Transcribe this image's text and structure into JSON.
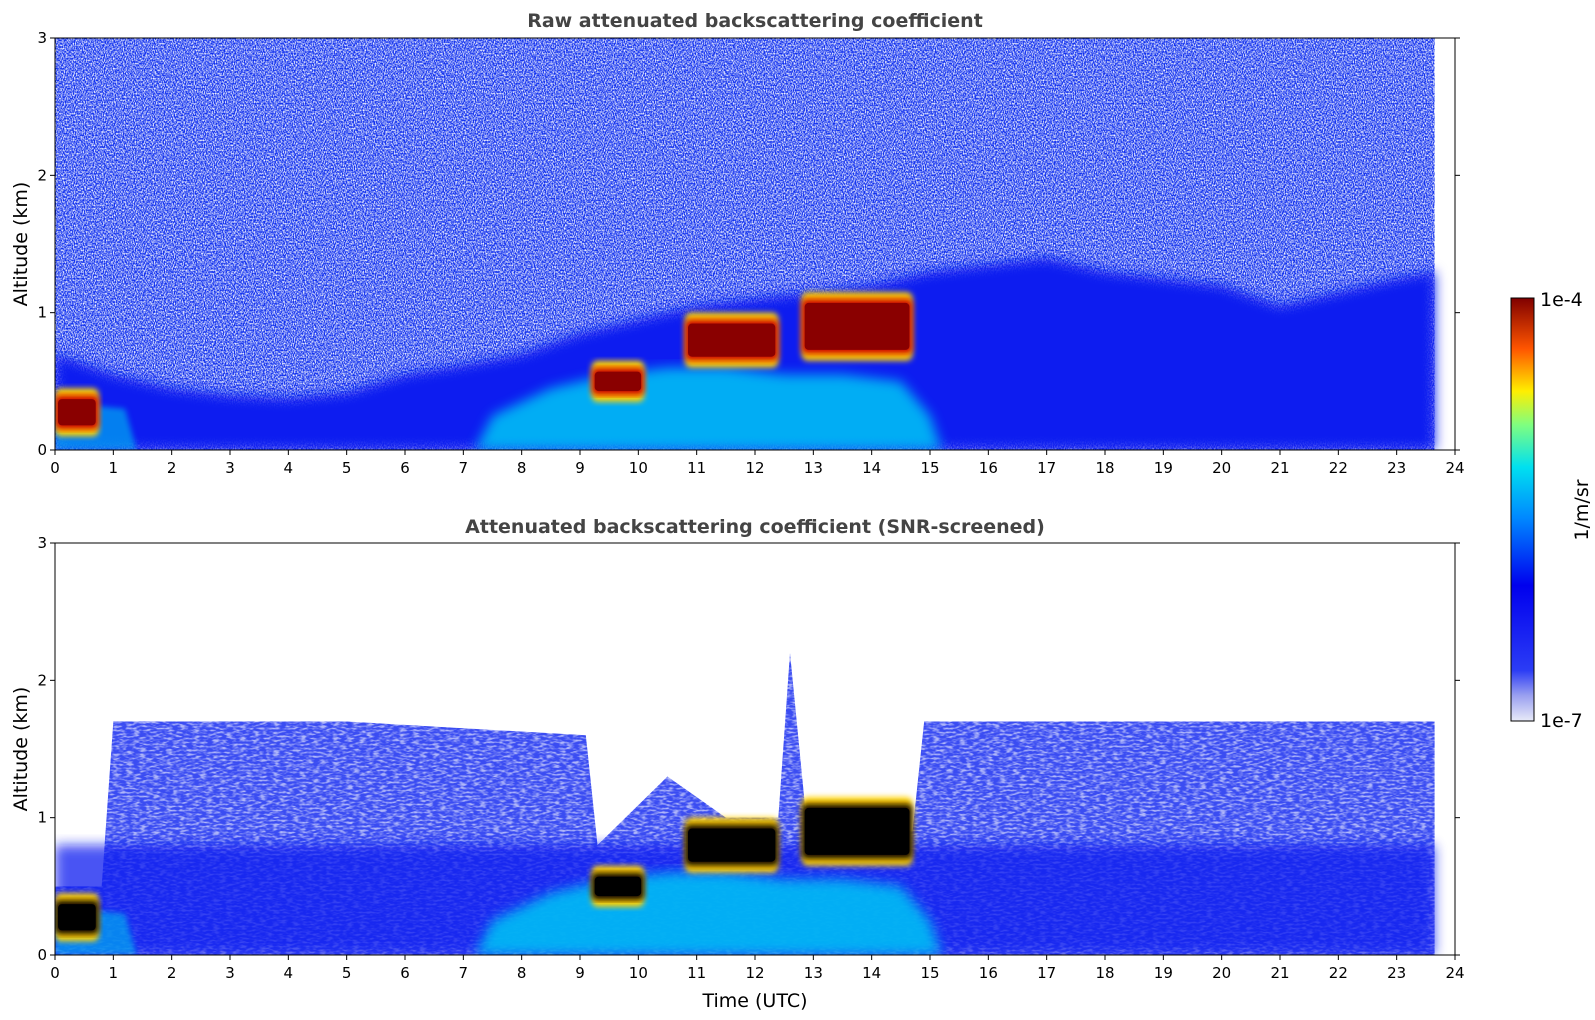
{
  "chart_data": [
    {
      "type": "heatmap",
      "title": "Raw attenuated backscattering coefficient",
      "xlabel": "",
      "ylabel": "Altitude (km)",
      "xlim": [
        0,
        24
      ],
      "ylim": [
        0,
        3
      ],
      "x_ticks": [
        "0",
        "1",
        "2",
        "3",
        "4",
        "5",
        "6",
        "7",
        "8",
        "9",
        "10",
        "11",
        "12",
        "13",
        "14",
        "15",
        "16",
        "17",
        "18",
        "19",
        "20",
        "21",
        "22",
        "23",
        "24"
      ],
      "y_ticks": [
        "0",
        "1",
        "2",
        "3"
      ],
      "data_end_hour": 23.65,
      "features": {
        "noise_floor_top_km": 3,
        "boundary_layer_top_km": [
          [
            0,
            0.7
          ],
          [
            1,
            0.55
          ],
          [
            2,
            0.45
          ],
          [
            3,
            0.4
          ],
          [
            4,
            0.38
          ],
          [
            5,
            0.42
          ],
          [
            6,
            0.55
          ],
          [
            7,
            0.62
          ],
          [
            8,
            0.7
          ],
          [
            9,
            0.85
          ],
          [
            10,
            0.95
          ],
          [
            11,
            1.05
          ],
          [
            12,
            1.1
          ],
          [
            13,
            1.15
          ],
          [
            14,
            1.2
          ],
          [
            15,
            1.3
          ],
          [
            16,
            1.35
          ],
          [
            17,
            1.4
          ],
          [
            18,
            1.3
          ],
          [
            19,
            1.25
          ],
          [
            20,
            1.2
          ],
          [
            21,
            1.05
          ],
          [
            22,
            1.15
          ],
          [
            23,
            1.25
          ],
          [
            23.65,
            1.3
          ]
        ],
        "clouds": [
          {
            "x0": 0.0,
            "x1": 0.75,
            "y0": 0.15,
            "y1": 0.4
          },
          {
            "x0": 9.2,
            "x1": 10.1,
            "y0": 0.4,
            "y1": 0.6
          },
          {
            "x0": 10.8,
            "x1": 12.4,
            "y0": 0.65,
            "y1": 0.95
          },
          {
            "x0": 12.8,
            "x1": 14.7,
            "y0": 0.7,
            "y1": 1.1
          }
        ]
      }
    },
    {
      "type": "heatmap",
      "title": "Attenuated backscattering coefficient (SNR-screened)",
      "xlabel": "Time (UTC)",
      "ylabel": "Altitude (km)",
      "xlim": [
        0,
        24
      ],
      "ylim": [
        0,
        3
      ],
      "x_ticks": [
        "0",
        "1",
        "2",
        "3",
        "4",
        "5",
        "6",
        "7",
        "8",
        "9",
        "10",
        "11",
        "12",
        "13",
        "14",
        "15",
        "16",
        "17",
        "18",
        "19",
        "20",
        "21",
        "22",
        "23",
        "24"
      ],
      "y_ticks": [
        "0",
        "1",
        "2",
        "3"
      ],
      "data_end_hour": 23.65,
      "features": {
        "signal_top_km": [
          [
            0,
            0.5
          ],
          [
            0.8,
            0.5
          ],
          [
            1.0,
            1.7
          ],
          [
            5,
            1.7
          ],
          [
            9.1,
            1.6
          ],
          [
            9.3,
            0.8
          ],
          [
            10.5,
            1.3
          ],
          [
            11.5,
            1.0
          ],
          [
            12.4,
            1.0
          ],
          [
            12.6,
            2.2
          ],
          [
            12.9,
            0.9
          ],
          [
            14.7,
            0.9
          ],
          [
            14.9,
            1.7
          ],
          [
            23.65,
            1.7
          ]
        ],
        "clouds": [
          {
            "x0": 0.0,
            "x1": 0.75,
            "y0": 0.15,
            "y1": 0.4
          },
          {
            "x0": 9.2,
            "x1": 10.1,
            "y0": 0.4,
            "y1": 0.6
          },
          {
            "x0": 10.8,
            "x1": 12.4,
            "y0": 0.65,
            "y1": 0.95
          },
          {
            "x0": 12.8,
            "x1": 14.7,
            "y0": 0.7,
            "y1": 1.1
          }
        ]
      }
    }
  ],
  "colorbar": {
    "unit_label": "1/m/sr",
    "max_label": "1e-4",
    "min_label": "1e-7",
    "scale": "log",
    "colormap": "jet"
  }
}
